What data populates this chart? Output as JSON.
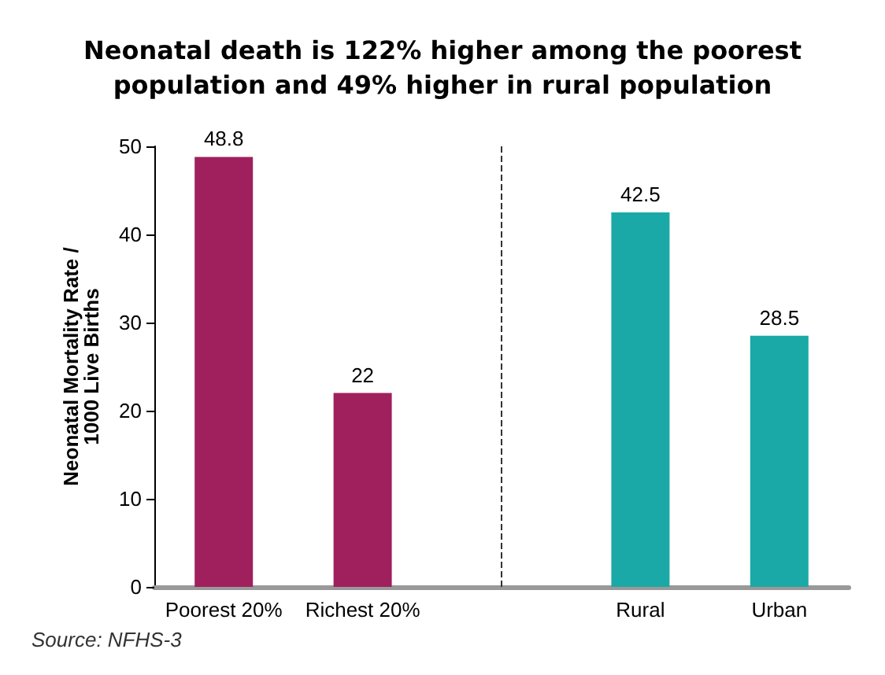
{
  "chart_data": {
    "type": "bar",
    "title": "Neonatal death is 122% higher among the poorest\npopulation and 49% higher in rural population",
    "categories": [
      "Poorest 20%",
      "Richest 20%",
      null,
      "Rural",
      "Urban"
    ],
    "values": [
      48.8,
      22,
      null,
      42.5,
      28.5
    ],
    "colors": [
      "#a0205e",
      "#a0205e",
      null,
      "#1aa9a6",
      "#1aa9a6"
    ],
    "ylabel": "Neonatal Mortality Rate /\n1000 Live Births",
    "ylim": [
      0,
      50
    ],
    "yticks": [
      0,
      10,
      20,
      30,
      40,
      50
    ],
    "data_labels": true,
    "ref_lines": [
      {
        "axis": "x",
        "value": null,
        "line_style": "dashed",
        "color": "#333333"
      }
    ],
    "annotations": [
      "Source: NFHS-3"
    ]
  }
}
